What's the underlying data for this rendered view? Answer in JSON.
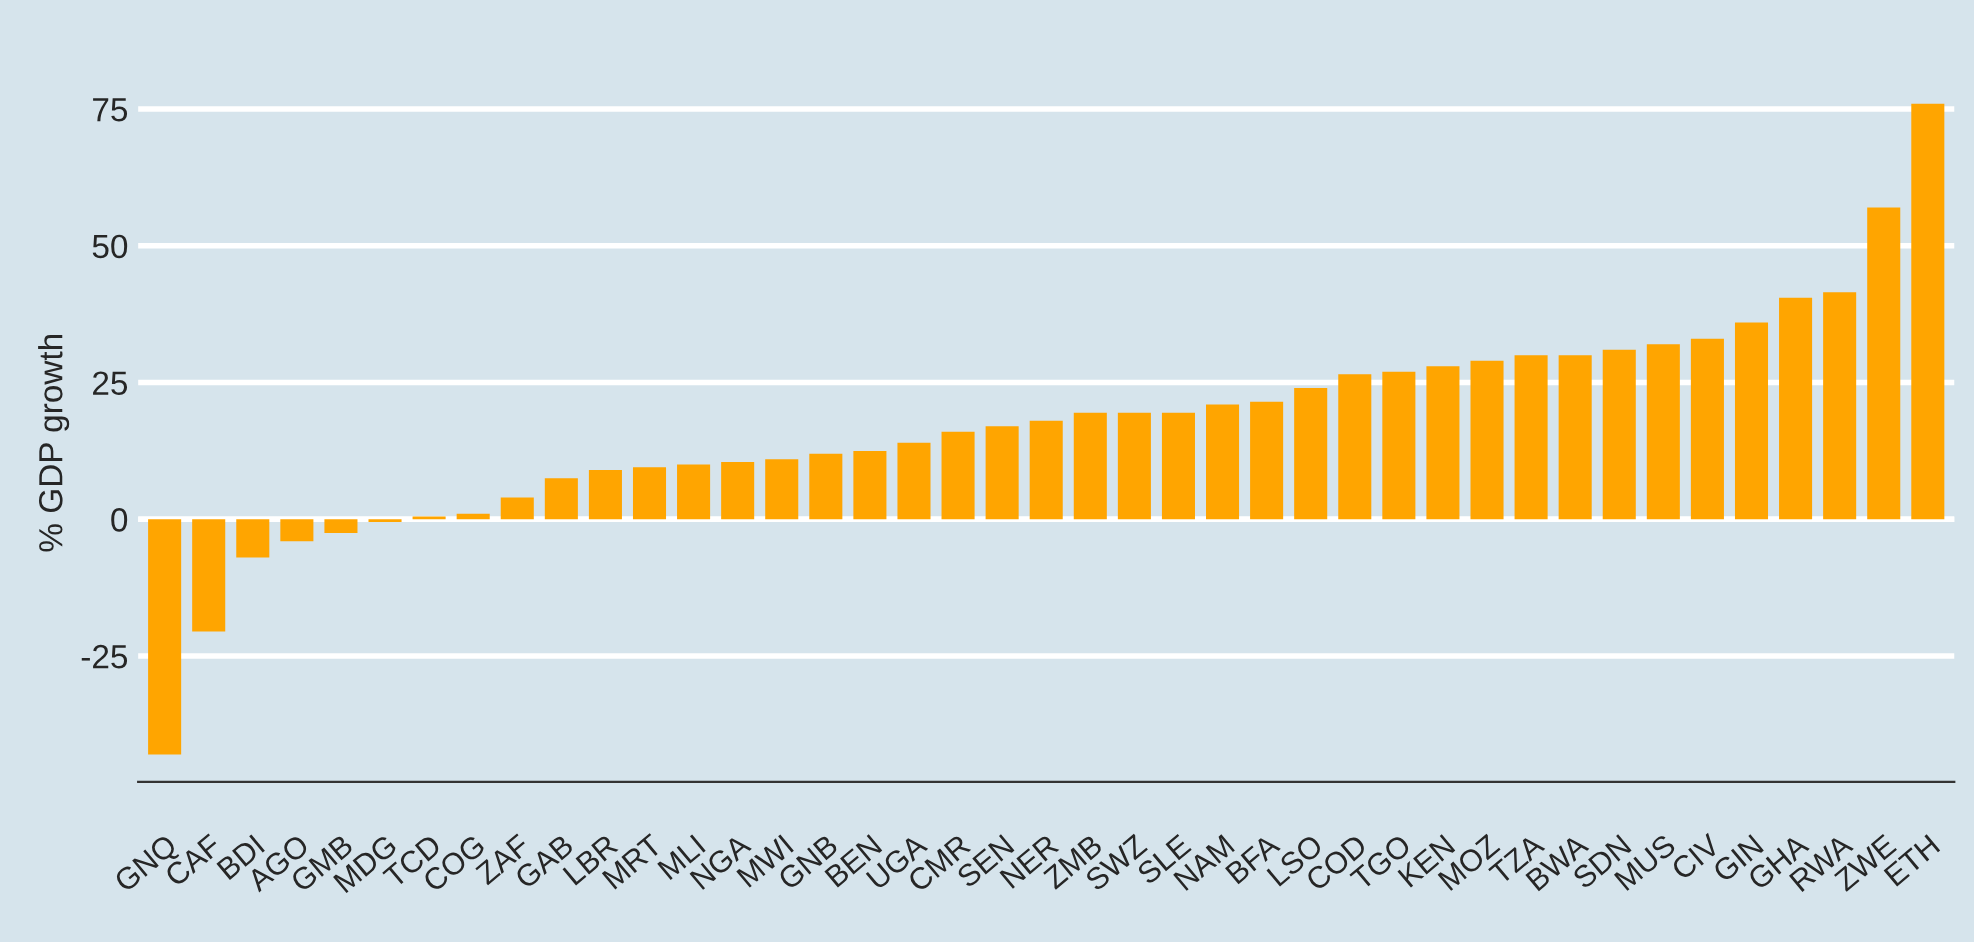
{
  "chart_data": {
    "type": "bar",
    "ylabel": "% GDP growth",
    "categories": [
      "GNQ",
      "CAF",
      "BDI",
      "AGO",
      "GMB",
      "MDG",
      "TCD",
      "COG",
      "ZAF",
      "GAB",
      "LBR",
      "MRT",
      "MLI",
      "NGA",
      "MWI",
      "GNB",
      "BEN",
      "UGA",
      "CMR",
      "SEN",
      "NER",
      "ZMB",
      "SWZ",
      "SLE",
      "NAM",
      "BFA",
      "LSO",
      "COD",
      "TGO",
      "KEN",
      "MOZ",
      "TZA",
      "BWA",
      "SDN",
      "MUS",
      "CIV",
      "GIN",
      "GHA",
      "RWA",
      "ZWE",
      "ETH"
    ],
    "values": [
      -43,
      -20.5,
      -7,
      -4,
      -2.5,
      -0.5,
      0.5,
      1,
      4,
      7.5,
      9,
      9.5,
      10,
      10.5,
      11,
      12,
      12.5,
      14,
      16,
      17,
      18,
      19.5,
      19.5,
      19.5,
      21,
      21.5,
      24,
      26.5,
      27,
      28,
      29,
      30,
      30,
      31,
      32,
      33,
      36,
      40.5,
      41.5,
      57,
      76
    ],
    "color": "#ffa500",
    "ylim": [
      -48,
      76
    ],
    "yticks": [
      -25,
      0,
      25,
      50,
      75
    ],
    "grid": "y"
  }
}
